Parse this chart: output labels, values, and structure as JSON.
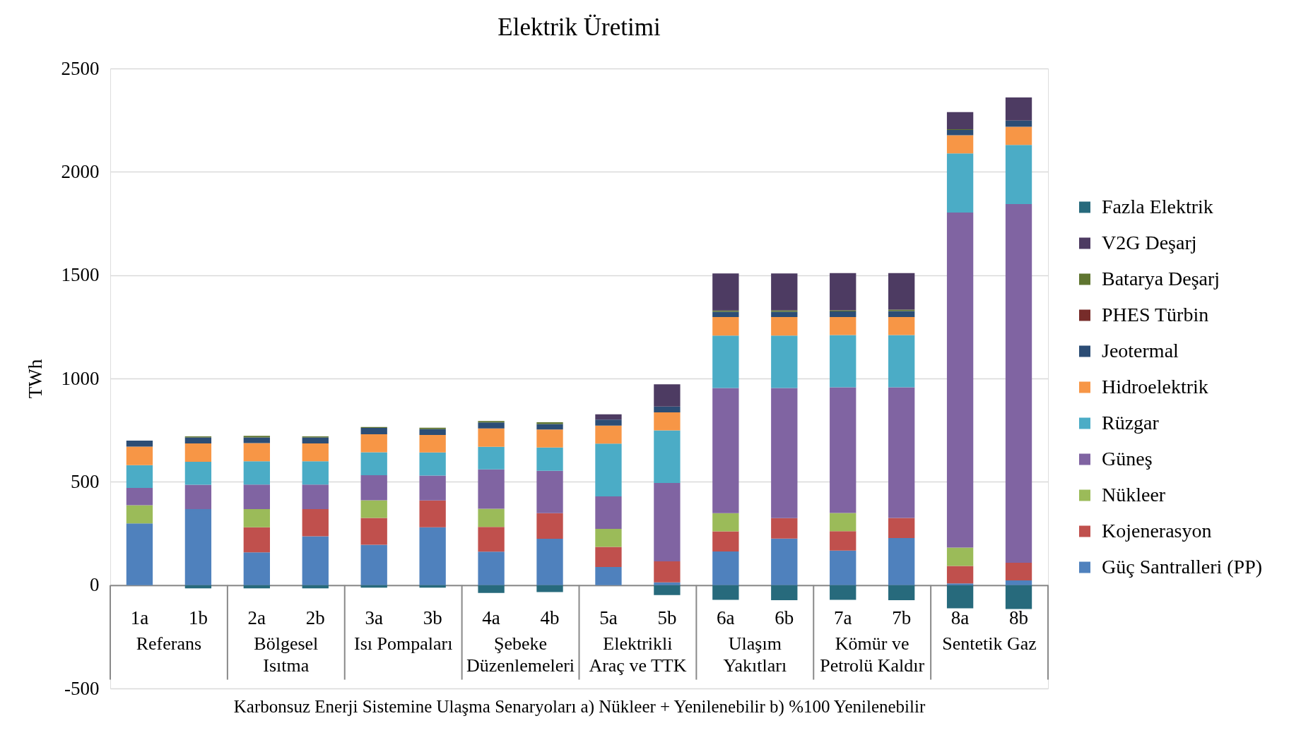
{
  "chart_data": {
    "type": "bar",
    "title": "Elektrik Üretimi",
    "xlabel": "Karbonsuz Enerji Sistemine Ulaşma Senaryoları a) Nükleer + Yenilenebilir b) %100 Yenilenebilir",
    "ylabel": "TWh",
    "categories": [
      "1a",
      "1b",
      "2a",
      "2b",
      "3a",
      "3b",
      "4a",
      "4b",
      "5a",
      "5b",
      "6a",
      "6b",
      "7a",
      "7b",
      "8a",
      "8b"
    ],
    "annotations": [
      "Referans",
      "Bölgesel Isıtma",
      "Isı Pompaları",
      "Şebeke Düzenlemeleri",
      "Elektrikli Araç ve TTK",
      "Ulaşım Yakıtları",
      "Kömür ve Petrolü Kaldır",
      "Sentetik Gaz"
    ],
    "stacked": true,
    "series": [
      {
        "name": "Güç Santralleri (PP)",
        "color": "#4f81bd",
        "values": [
          299,
          368,
          159,
          236,
          195,
          280,
          162,
          224,
          88,
          13,
          163,
          225,
          167,
          228,
          8,
          23
        ]
      },
      {
        "name": "Kojenerasyon",
        "color": "#c0504d",
        "values": [
          null,
          null,
          121,
          132,
          130,
          130,
          120,
          124,
          97,
          102,
          97,
          99,
          94,
          97,
          85,
          85
        ]
      },
      {
        "name": "Nükleer",
        "color": "#9bbb59",
        "values": [
          88,
          null,
          88,
          null,
          86,
          null,
          88,
          null,
          87,
          null,
          88,
          null,
          88,
          null,
          89,
          null
        ]
      },
      {
        "name": "Güneş",
        "color": "#8064a2",
        "values": [
          83,
          118,
          119,
          119,
          121,
          120,
          190,
          205,
          157,
          379,
          606,
          630,
          608,
          632,
          1621,
          1736
        ]
      },
      {
        "name": "Rüzgar",
        "color": "#4bacc6",
        "values": [
          111,
          111,
          112,
          112,
          111,
          112,
          109,
          113,
          256,
          255,
          254,
          254,
          253,
          253,
          286,
          286
        ]
      },
      {
        "name": "Hidroelektrik",
        "color": "#f79646",
        "values": [
          89,
          89,
          88,
          87,
          87,
          85,
          89,
          87,
          87,
          87,
          89,
          89,
          87,
          87,
          88,
          88
        ]
      },
      {
        "name": "Jeotermal",
        "color": "#2c4d75",
        "values": [
          29,
          29,
          28,
          29,
          31,
          28,
          29,
          27,
          29,
          28,
          26,
          26,
          28,
          29,
          26,
          30
        ]
      },
      {
        "name": "PHES Türbin",
        "color": "#772c2a",
        "values": [
          null,
          null,
          null,
          null,
          null,
          null,
          null,
          null,
          null,
          null,
          null,
          null,
          null,
          null,
          null,
          null
        ]
      },
      {
        "name": "Batarya Deşarj",
        "color": "#5f7530",
        "values": [
          null,
          5,
          7,
          5,
          4,
          7,
          7,
          8,
          null,
          null,
          6,
          7,
          5,
          7,
          3,
          null
        ]
      },
      {
        "name": "V2G Deşarj",
        "color": "#4d3b62",
        "values": [
          null,
          null,
          null,
          null,
          null,
          null,
          null,
          null,
          26,
          108,
          179,
          178,
          180,
          177,
          83,
          112
        ]
      },
      {
        "name": "Fazla Elektrik",
        "color": "#276a7c",
        "values": [
          null,
          -16,
          -16,
          -16,
          -12,
          -12,
          -38,
          -34,
          null,
          -48,
          -71,
          -73,
          -71,
          -73,
          -112,
          -116
        ]
      }
    ],
    "ylim": [
      -500,
      2500
    ],
    "yticks": [
      -500,
      0,
      500,
      1000,
      1500,
      2000,
      2500
    ],
    "grid": "y",
    "legend": "right"
  }
}
